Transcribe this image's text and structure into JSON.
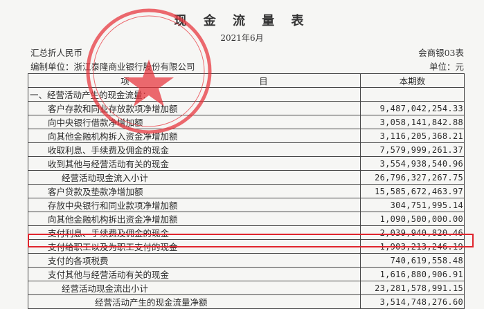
{
  "document": {
    "title": "现 金 流 量 表",
    "period": "2021年6月",
    "currency_note": "汇总折人民币",
    "form_code": "会商银03表",
    "preparer": "编制单位：浙江泰隆商业银行股份有限公司",
    "unit": "单位：元",
    "stamp_text": "浙江泰隆商业银行股份有限公司",
    "stamp_color": "#e8323a",
    "highlight_color": "#e0252d"
  },
  "table": {
    "headers": [
      "项　　　　　　　　　　　　　　　目",
      "本期数"
    ],
    "rows": [
      {
        "label": "一、经营活动产生的现金流量：",
        "value": "",
        "indent": 0
      },
      {
        "label": "客户存款和同业存放款项净增加额",
        "value": "9,487,042,254.33",
        "indent": 1
      },
      {
        "label": "向中央银行借款净增加额",
        "value": "3,058,141,842.88",
        "indent": 1
      },
      {
        "label": "向其他金融机构拆入资金净增加额",
        "value": "3,116,205,368.21",
        "indent": 1
      },
      {
        "label": "收取利息、手续费及佣金的现金",
        "value": "7,579,999,261.37",
        "indent": 1
      },
      {
        "label": "收到其他与经营活动有关的现金",
        "value": "3,554,938,540.96",
        "indent": 1
      },
      {
        "label": "经营活动现金流入小计",
        "value": "26,796,327,267.75",
        "indent": 2
      },
      {
        "label": "客户贷款及垫款净增加额",
        "value": "15,585,672,463.97",
        "indent": 1
      },
      {
        "label": "存放中央银行和同业款项净增加额",
        "value": "304,751,995.14",
        "indent": 1
      },
      {
        "label": "向其他金融机构拆出资金净增加额",
        "value": "1,090,500,000.00",
        "indent": 1
      },
      {
        "label": "支付利息、手续费及佣金的现金",
        "value": "2,039,940,820.46",
        "indent": 1
      },
      {
        "label": "支付给职工以及为职工支付的现金",
        "value": "1,903,213,246.19",
        "indent": 1,
        "highlighted": true
      },
      {
        "label": "支付的各项税费",
        "value": "740,619,558.48",
        "indent": 1
      },
      {
        "label": "支付其他与经营活动有关的现金",
        "value": "1,616,880,906.91",
        "indent": 1
      },
      {
        "label": "经营活动现金流出小计",
        "value": "23,281,578,991.15",
        "indent": 2
      },
      {
        "label": "经营活动产生的现金流量净额",
        "value": "3,514,748,276.60",
        "indent": 3
      }
    ]
  }
}
